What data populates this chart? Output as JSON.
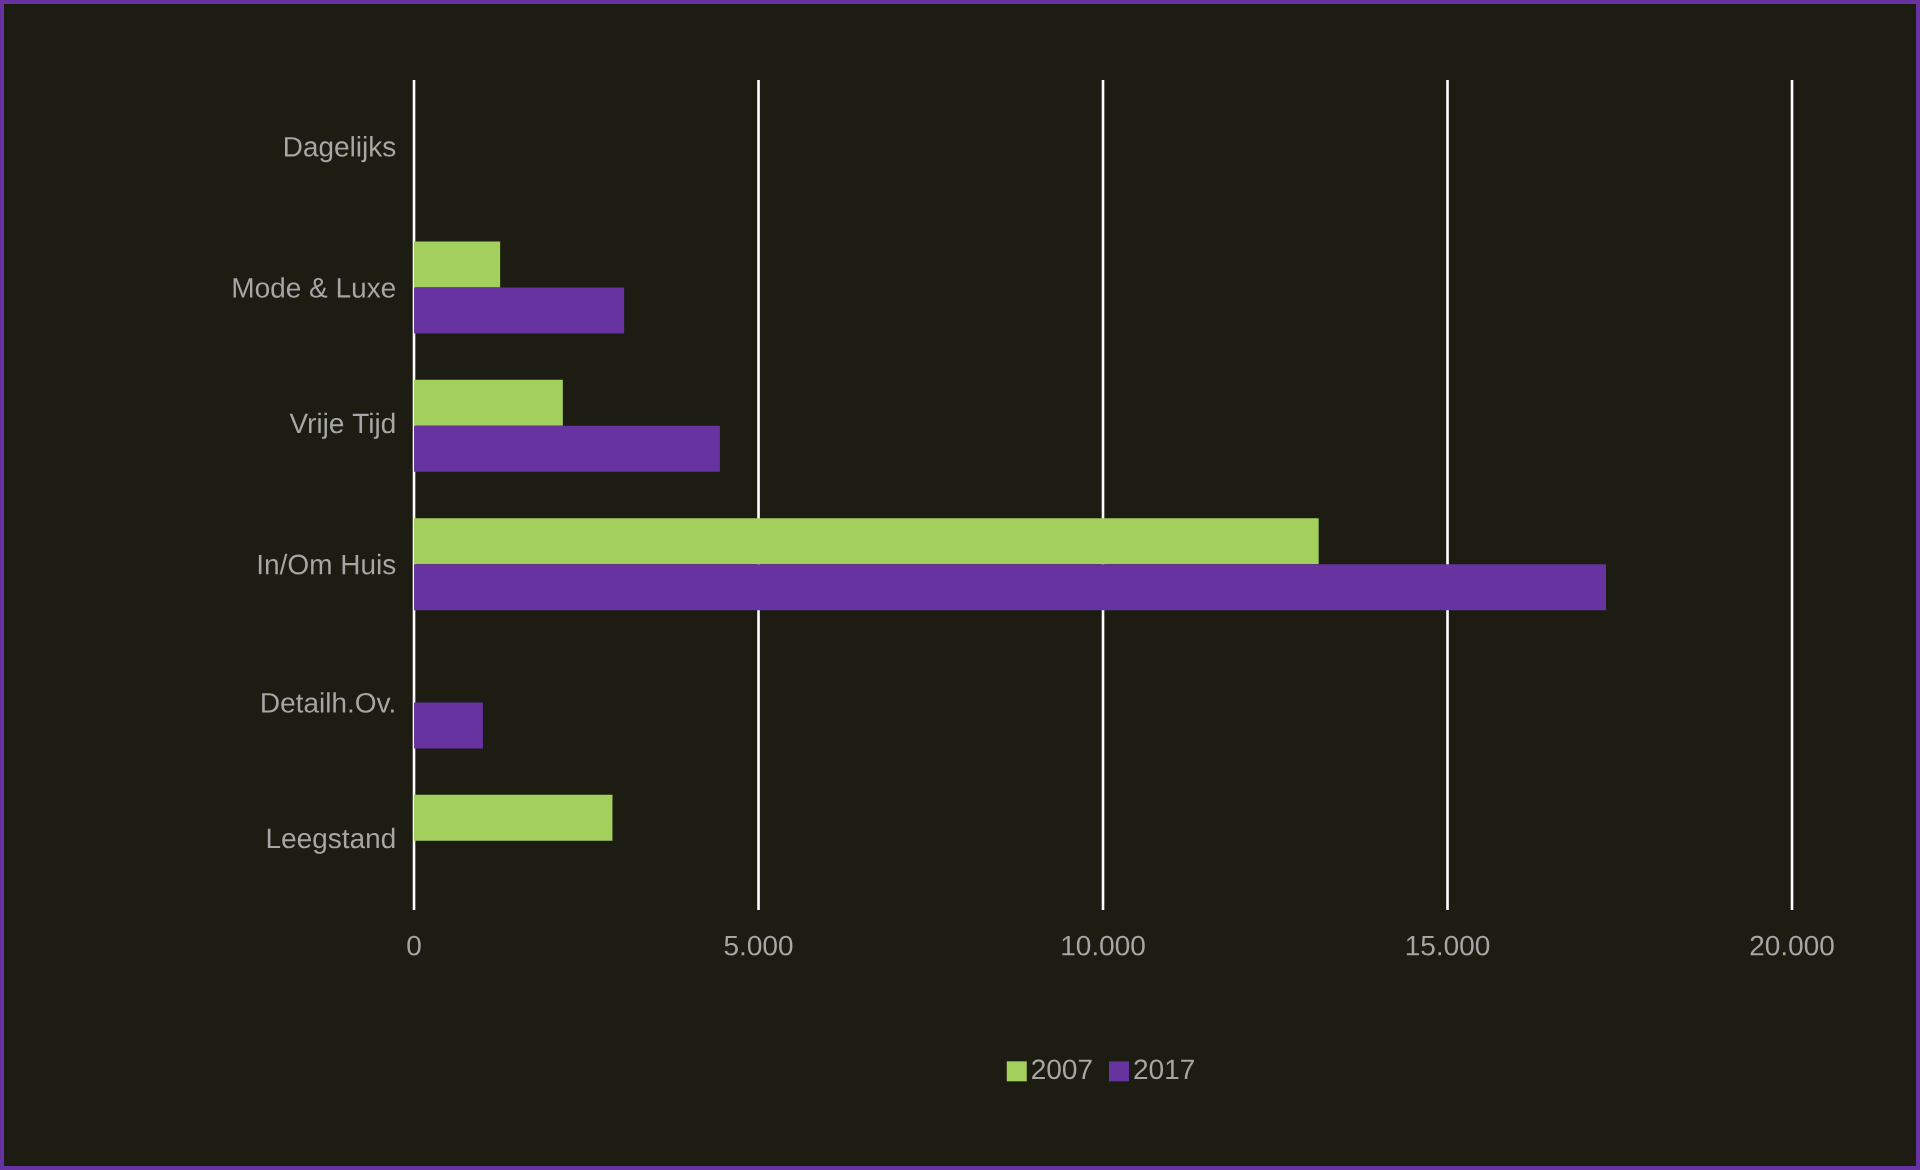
{
  "chart_data": {
    "type": "bar",
    "orientation": "horizontal",
    "categories": [
      "Dagelijks",
      "Mode & Luxe",
      "Vrije Tijd",
      "In/Om Huis",
      "Detailh.Ov.",
      "Leegstand"
    ],
    "series": [
      {
        "name": "2007",
        "color": "#a3d05c",
        "values": [
          null,
          1250,
          2160,
          13130,
          null,
          2880
        ]
      },
      {
        "name": "2017",
        "color": "#6633a0",
        "values": [
          null,
          3050,
          4440,
          17300,
          1000,
          null
        ]
      }
    ],
    "xlim": [
      0,
      20000
    ],
    "xticks": [
      0,
      {
        "value": 5000,
        "label": "5.000"
      },
      {
        "value": 10000,
        "label": "10.000"
      },
      {
        "value": 15000,
        "label": "15.000"
      },
      {
        "value": 20000,
        "label": "20.000"
      }
    ],
    "grid": "x",
    "legend": "bottom"
  }
}
